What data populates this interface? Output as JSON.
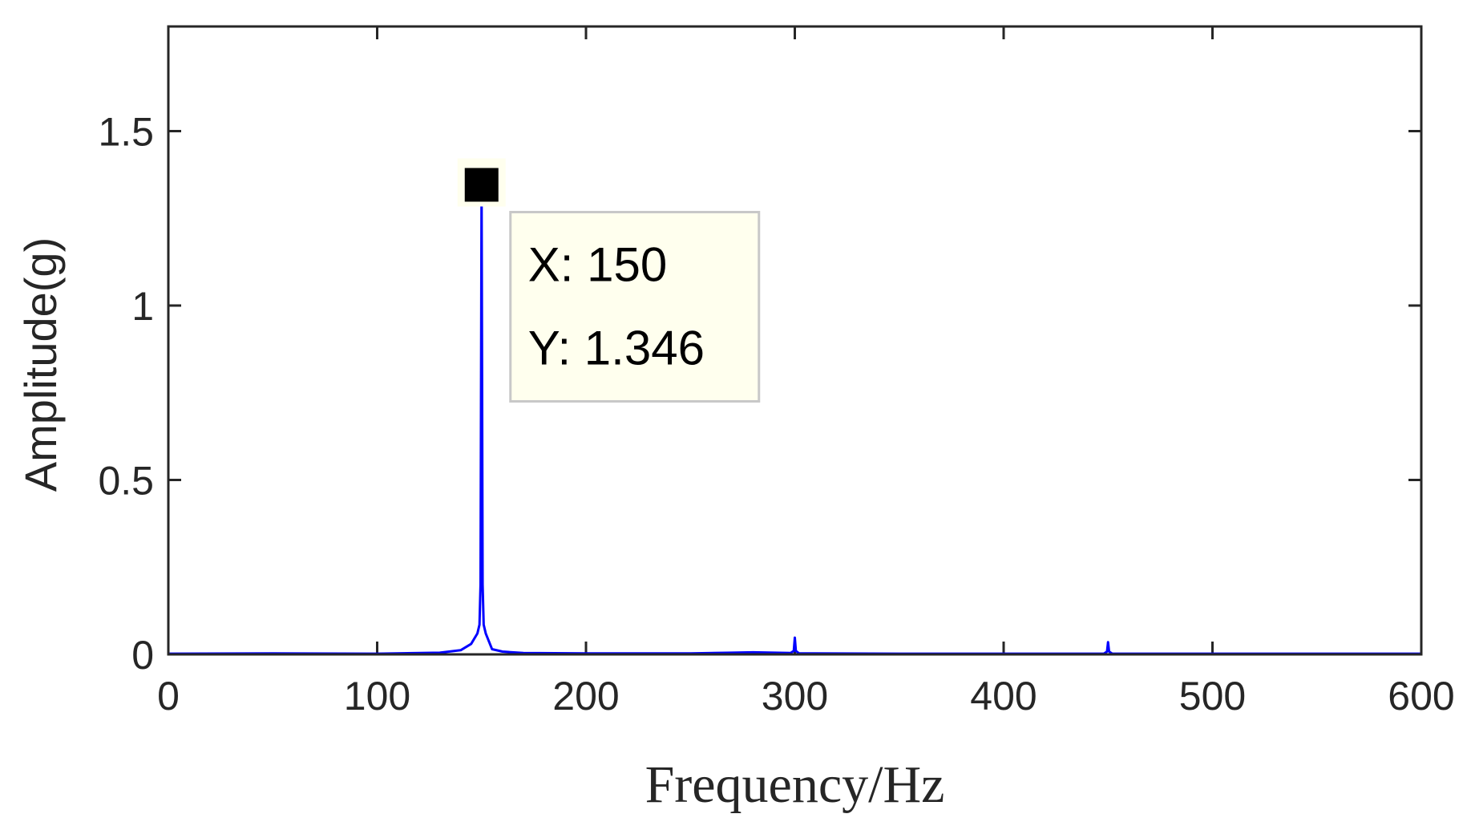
{
  "chart_data": {
    "type": "line",
    "title": "",
    "xlabel": "Frequency/Hz",
    "ylabel": "Amplitude(g)",
    "xlim": [
      0,
      600
    ],
    "ylim": [
      0,
      1.8
    ],
    "x_ticks": [
      0,
      100,
      200,
      300,
      400,
      500,
      600
    ],
    "x_tick_labels": [
      "0",
      "100",
      "200",
      "300",
      "400",
      "500",
      "600"
    ],
    "y_ticks": [
      0,
      0.5,
      1,
      1.5
    ],
    "y_tick_labels": [
      "0",
      "0.5",
      "1",
      "1.5"
    ],
    "grid": false,
    "series_color": "#0000ff",
    "series": [
      {
        "x": [
          0,
          50,
          100,
          130,
          140,
          145,
          148,
          149,
          149.5,
          150,
          150.5,
          151,
          152,
          155,
          160,
          170,
          200,
          250,
          270,
          280,
          290,
          298,
          299.5,
          300,
          300.5,
          302,
          350,
          400,
          448,
          449.5,
          450,
          450.5,
          452,
          500,
          550,
          600
        ],
        "y": [
          0.002,
          0.003,
          0.002,
          0.005,
          0.012,
          0.03,
          0.06,
          0.085,
          0.2,
          1.346,
          0.2,
          0.085,
          0.06,
          0.015,
          0.008,
          0.004,
          0.003,
          0.003,
          0.005,
          0.006,
          0.005,
          0.004,
          0.01,
          0.048,
          0.01,
          0.003,
          0.002,
          0.002,
          0.002,
          0.008,
          0.035,
          0.008,
          0.002,
          0.002,
          0.002,
          0.002
        ]
      }
    ],
    "annotations": [
      {
        "type": "datatip",
        "x": 150,
        "y": 1.346,
        "lines": [
          "X: 150",
          "Y: 1.346"
        ],
        "background": "#ffffee",
        "border": "#c8c8c8"
      }
    ]
  }
}
